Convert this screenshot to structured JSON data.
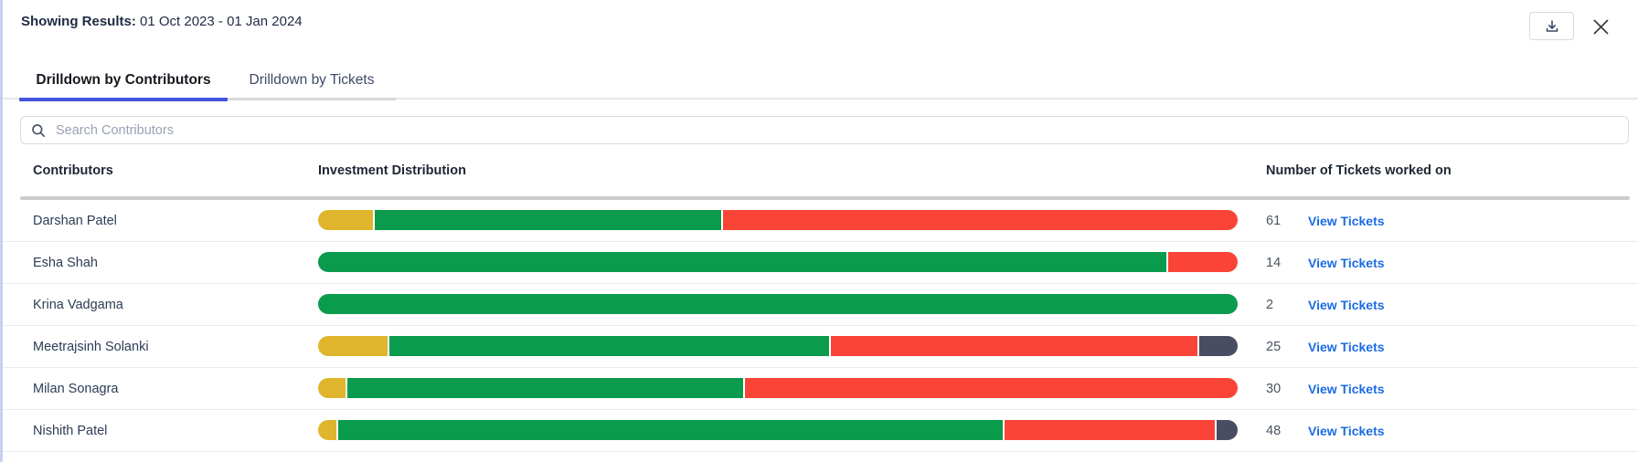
{
  "header": {
    "label": "Showing Results:",
    "value": "01 Oct 2023 - 01 Jan 2024"
  },
  "toolbar": {
    "download_icon": "download-icon",
    "close_icon": "close-icon"
  },
  "tabs": [
    {
      "label": "Drilldown by Contributors",
      "active": true
    },
    {
      "label": "Drilldown by Tickets",
      "active": false
    }
  ],
  "search": {
    "placeholder": "Search Contributors",
    "value": "",
    "icon": "search-icon"
  },
  "table": {
    "columns": [
      "Contributors",
      "Investment Distribution",
      "Number of Tickets worked on"
    ],
    "link_label": "View Tickets",
    "rows": [
      {
        "name": "Darshan Patel",
        "tickets": "61",
        "segments": [
          {
            "color": "yellow",
            "pct": 6.0
          },
          {
            "color": "green",
            "pct": 37.8
          },
          {
            "color": "red",
            "pct": 56.2
          }
        ]
      },
      {
        "name": "Esha Shah",
        "tickets": "14",
        "segments": [
          {
            "color": "green",
            "pct": 92.4
          },
          {
            "color": "red",
            "pct": 7.6
          }
        ]
      },
      {
        "name": "Krina Vadgama",
        "tickets": "2",
        "segments": [
          {
            "color": "green",
            "pct": 100
          }
        ]
      },
      {
        "name": "Meetrajsinh Solanki",
        "tickets": "25",
        "segments": [
          {
            "color": "yellow",
            "pct": 7.6
          },
          {
            "color": "green",
            "pct": 48.1
          },
          {
            "color": "red",
            "pct": 40.1
          },
          {
            "color": "slate",
            "pct": 4.2
          }
        ]
      },
      {
        "name": "Milan Sonagra",
        "tickets": "30",
        "segments": [
          {
            "color": "yellow",
            "pct": 3.0
          },
          {
            "color": "green",
            "pct": 43.2
          },
          {
            "color": "red",
            "pct": 53.8
          }
        ]
      },
      {
        "name": "Nishith Patel",
        "tickets": "48",
        "segments": [
          {
            "color": "yellow",
            "pct": 2.0
          },
          {
            "color": "green",
            "pct": 72.7
          },
          {
            "color": "red",
            "pct": 23.0
          },
          {
            "color": "slate",
            "pct": 2.3
          }
        ]
      }
    ]
  },
  "colors": {
    "yellow": "#dfb52d",
    "green": "#0b9b4d",
    "red": "#fa4438",
    "slate": "#4a4c64",
    "accent": "#4353df",
    "link": "#1b6be5"
  }
}
